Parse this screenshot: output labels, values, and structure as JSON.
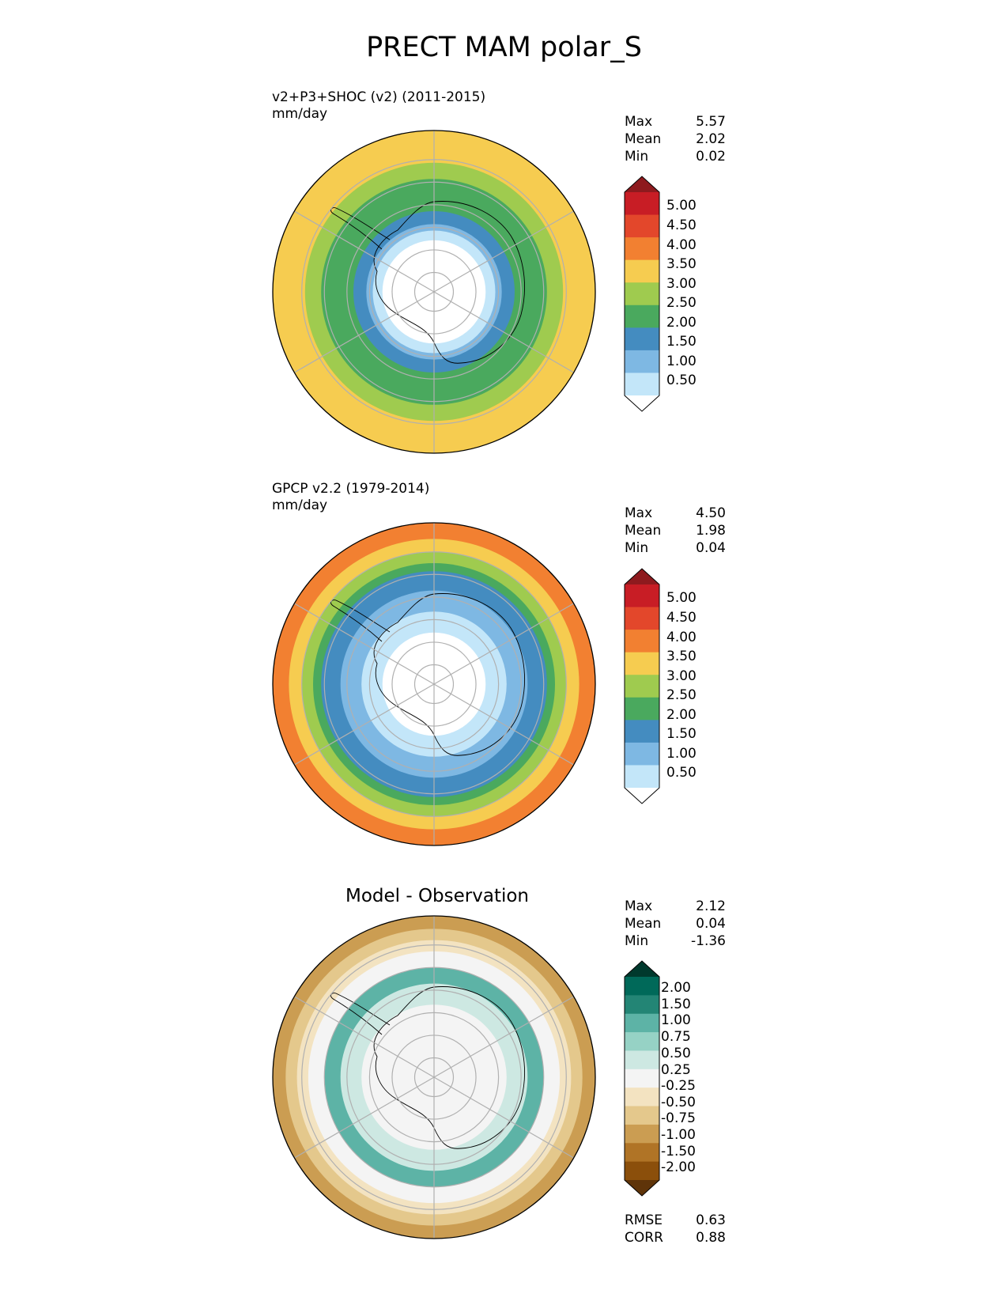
{
  "figure": {
    "title": "PRECT MAM polar_S"
  },
  "panels": [
    {
      "id": "model",
      "label_line1": "v2+P3+SHOC (v2) (2011-2015)",
      "label_line2": "mm/day",
      "stats": [
        {
          "name": "Max",
          "value": "5.57"
        },
        {
          "name": "Mean",
          "value": "2.02"
        },
        {
          "name": "Min",
          "value": "0.02"
        }
      ],
      "colorbar": {
        "ticks": [
          "5.00",
          "4.50",
          "4.00",
          "3.50",
          "3.00",
          "2.50",
          "2.00",
          "1.50",
          "1.00",
          "0.50"
        ],
        "colors": [
          "#8e1a1e",
          "#c81d25",
          "#e3472b",
          "#f28031",
          "#f6cc50",
          "#9fcb4f",
          "#4aa95e",
          "#448cc0",
          "#7eb8e3",
          "#c3e6f9",
          "#ffffff"
        ]
      },
      "rings": [
        {
          "frac": 0.0,
          "color": "#f6cc50"
        },
        {
          "frac": 0.2,
          "color": "#9fcb4f"
        },
        {
          "frac": 0.3,
          "color": "#4aa95e"
        },
        {
          "frac": 0.5,
          "color": "#448cc0"
        },
        {
          "frac": 0.58,
          "color": "#7eb8e3"
        },
        {
          "frac": 0.62,
          "color": "#c3e6f9"
        },
        {
          "frac": 0.68,
          "color": "#ffffff"
        }
      ]
    },
    {
      "id": "obs",
      "label_line1": "GPCP v2.2 (1979-2014)",
      "label_line2": "mm/day",
      "stats": [
        {
          "name": "Max",
          "value": "4.50"
        },
        {
          "name": "Mean",
          "value": "1.98"
        },
        {
          "name": "Min",
          "value": "0.04"
        }
      ],
      "colorbar": {
        "ticks": [
          "5.00",
          "4.50",
          "4.00",
          "3.50",
          "3.00",
          "2.50",
          "2.00",
          "1.50",
          "1.00",
          "0.50"
        ],
        "colors": [
          "#8e1a1e",
          "#c81d25",
          "#e3472b",
          "#f28031",
          "#f6cc50",
          "#9fcb4f",
          "#4aa95e",
          "#448cc0",
          "#7eb8e3",
          "#c3e6f9",
          "#ffffff"
        ]
      },
      "rings": [
        {
          "frac": 0.0,
          "color": "#f28031"
        },
        {
          "frac": 0.1,
          "color": "#f6cc50"
        },
        {
          "frac": 0.18,
          "color": "#9fcb4f"
        },
        {
          "frac": 0.25,
          "color": "#4aa95e"
        },
        {
          "frac": 0.3,
          "color": "#448cc0"
        },
        {
          "frac": 0.42,
          "color": "#7eb8e3"
        },
        {
          "frac": 0.55,
          "color": "#c3e6f9"
        },
        {
          "frac": 0.68,
          "color": "#ffffff"
        }
      ]
    },
    {
      "id": "diff",
      "title": "Model - Observation",
      "stats": [
        {
          "name": "Max",
          "value": "2.12"
        },
        {
          "name": "Mean",
          "value": "0.04"
        },
        {
          "name": "Min",
          "value": "-1.36"
        }
      ],
      "extra_stats": [
        {
          "name": "RMSE",
          "value": "0.63"
        },
        {
          "name": "CORR",
          "value": "0.88"
        }
      ],
      "colorbar": {
        "ticks": [
          "2.00",
          "1.50",
          "1.00",
          "0.75",
          "0.50",
          "0.25",
          "-0.25",
          "-0.50",
          "-0.75",
          "-1.00",
          "-1.50",
          "-2.00"
        ],
        "colors": [
          "#00392d",
          "#006959",
          "#238575",
          "#5db3a6",
          "#96d2c5",
          "#cde8e2",
          "#f4f4f4",
          "#f3e3c1",
          "#e4c88c",
          "#cb9d52",
          "#b07426",
          "#8b4f0b",
          "#5f3409"
        ]
      },
      "rings": [
        {
          "frac": 0.0,
          "color": "#cb9d52"
        },
        {
          "frac": 0.08,
          "color": "#e4c88c"
        },
        {
          "frac": 0.15,
          "color": "#f3e3c1"
        },
        {
          "frac": 0.22,
          "color": "#f4f4f4"
        },
        {
          "frac": 0.32,
          "color": "#5db3a6"
        },
        {
          "frac": 0.42,
          "color": "#cde8e2"
        },
        {
          "frac": 0.55,
          "color": "#f4f4f4"
        }
      ]
    }
  ]
}
